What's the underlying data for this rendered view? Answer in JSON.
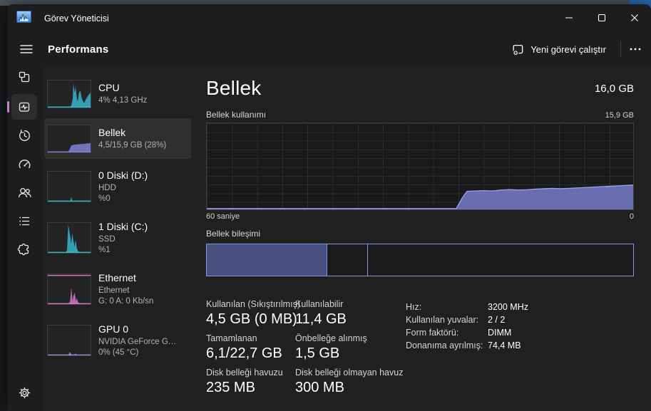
{
  "colors": {
    "accent": "#c583d8",
    "cpu": "#37b5cc",
    "memory": "#7b85d6",
    "memory_line": "#9aa4ec",
    "disk": "#37b5cc",
    "ethernet": "#d873c8",
    "gpu": "#9a86d6",
    "comp_fill": "#475180",
    "comp_border": "#8393e8"
  },
  "window": {
    "title": "Görev Yöneticisi",
    "app_icon": "task-manager-logo"
  },
  "command_bar": {
    "page_title": "Performans",
    "run_new_task_label": "Yeni görevi çalıştır",
    "more_options": "..."
  },
  "sidebar": {
    "icons": [
      "hamburger-menu-icon",
      "processes-icon",
      "performance-icon",
      "app-history-icon",
      "startup-apps-icon",
      "users-icon",
      "details-icon",
      "services-icon",
      "settings-icon"
    ],
    "selected": "performance-icon"
  },
  "devices": [
    {
      "name": "CPU",
      "line2": "4% 4,13 GHz",
      "color": "cpu",
      "selected": false,
      "spark": [
        [
          0,
          3
        ],
        [
          52,
          3
        ],
        [
          55,
          8
        ],
        [
          58,
          30
        ],
        [
          60,
          88
        ],
        [
          63,
          55
        ],
        [
          65,
          78
        ],
        [
          68,
          35
        ],
        [
          70,
          22
        ],
        [
          73,
          55
        ],
        [
          76,
          62
        ],
        [
          79,
          38
        ],
        [
          82,
          25
        ],
        [
          85,
          16
        ],
        [
          88,
          28
        ],
        [
          92,
          38
        ],
        [
          96,
          48
        ],
        [
          100,
          55
        ]
      ]
    },
    {
      "name": "Bellek",
      "line2": "4,5/15,9 GB (28%)",
      "color": "memory",
      "selected": true,
      "spark": [
        [
          0,
          3
        ],
        [
          48,
          3
        ],
        [
          52,
          14
        ],
        [
          55,
          26
        ],
        [
          60,
          28
        ],
        [
          70,
          30
        ],
        [
          80,
          31
        ],
        [
          90,
          33
        ],
        [
          100,
          35
        ]
      ]
    },
    {
      "name": "0 Diski (D:)",
      "line2": "HDD",
      "line3": "%0",
      "color": "disk",
      "selected": false,
      "spark": [
        [
          0,
          2
        ],
        [
          50,
          2
        ],
        [
          53,
          4
        ],
        [
          55,
          16
        ],
        [
          57,
          4
        ],
        [
          62,
          2
        ],
        [
          100,
          2
        ]
      ]
    },
    {
      "name": "1 Diski (C:)",
      "line2": "SSD",
      "line3": "%1",
      "color": "disk",
      "selected": false,
      "spark": [
        [
          0,
          2
        ],
        [
          42,
          2
        ],
        [
          45,
          10
        ],
        [
          48,
          95
        ],
        [
          52,
          60
        ],
        [
          55,
          30
        ],
        [
          57,
          65
        ],
        [
          60,
          40
        ],
        [
          63,
          20
        ],
        [
          65,
          45
        ],
        [
          68,
          15
        ],
        [
          71,
          5
        ],
        [
          75,
          2
        ],
        [
          100,
          2
        ]
      ]
    },
    {
      "name": "Ethernet",
      "line2": "Ethernet",
      "line3": "G: 0 A: 0 Kb/sn",
      "color": "ethernet",
      "selected": false,
      "topline": true,
      "spark": [
        [
          0,
          2
        ],
        [
          48,
          2
        ],
        [
          52,
          8
        ],
        [
          55,
          55
        ],
        [
          58,
          12
        ],
        [
          60,
          28
        ],
        [
          63,
          38
        ],
        [
          66,
          10
        ],
        [
          68,
          20
        ],
        [
          71,
          6
        ],
        [
          75,
          2
        ],
        [
          100,
          2
        ]
      ]
    },
    {
      "name": "GPU 0",
      "line2": "NVIDIA GeForce G…",
      "line3": "0% (45 °C)",
      "color": "gpu",
      "selected": false,
      "spark": [
        [
          0,
          2
        ],
        [
          48,
          2
        ],
        [
          52,
          12
        ],
        [
          55,
          4
        ],
        [
          60,
          2
        ],
        [
          65,
          6
        ],
        [
          68,
          2
        ],
        [
          100,
          2
        ]
      ]
    }
  ],
  "main": {
    "title": "Bellek",
    "total": "16,0 GB",
    "usage_chart": {
      "label": "Bellek kullanımı",
      "scale_max_label": "15,9 GB",
      "x_left_label": "60 saniye",
      "x_right_label": "0",
      "points": [
        [
          0,
          1
        ],
        [
          58.5,
          1
        ],
        [
          60,
          14
        ],
        [
          61,
          21
        ],
        [
          63,
          21.5
        ],
        [
          65,
          21.8
        ],
        [
          67,
          21.5
        ],
        [
          69,
          22.5
        ],
        [
          71,
          23
        ],
        [
          73,
          22.5
        ],
        [
          75,
          22.8
        ],
        [
          77,
          23.5
        ],
        [
          79,
          24
        ],
        [
          81,
          24.5
        ],
        [
          83,
          24
        ],
        [
          85,
          24.5
        ],
        [
          87,
          25
        ],
        [
          89,
          25.5
        ],
        [
          91,
          26
        ],
        [
          93,
          26.5
        ],
        [
          95,
          27
        ],
        [
          97,
          27.5
        ],
        [
          100,
          28.3
        ]
      ]
    },
    "composition": {
      "label": "Bellek bileşimi",
      "segments": [
        {
          "name": "in-use",
          "percent": 28.3,
          "filled": true
        },
        {
          "name": "standby",
          "percent": 9.5,
          "filled": false
        },
        {
          "name": "free",
          "percent": 62.2,
          "filled": false
        }
      ]
    },
    "stats": [
      {
        "label": "Kullanılan (Sıkıştırılmış)",
        "value": "4,5 GB (0 MB)"
      },
      {
        "label": "Kullanılabilir",
        "value": "11,4 GB"
      },
      {
        "label": "Tamamlanan",
        "value": "6,1/22,7 GB"
      },
      {
        "label": "Önbelleğe alınmış",
        "value": "1,5 GB"
      },
      {
        "label": "Disk belleği havuzu",
        "value": "235 MB"
      },
      {
        "label": "Disk belleği olmayan havuz",
        "value": "300 MB"
      }
    ],
    "details": [
      {
        "label": "Hız:",
        "value": "3200 MHz"
      },
      {
        "label": "Kullanılan yuvalar:",
        "value": "2 / 2"
      },
      {
        "label": "Form faktörü:",
        "value": "DIMM"
      },
      {
        "label": "Donanıma ayrılmış:",
        "value": "74,4 MB"
      }
    ]
  }
}
